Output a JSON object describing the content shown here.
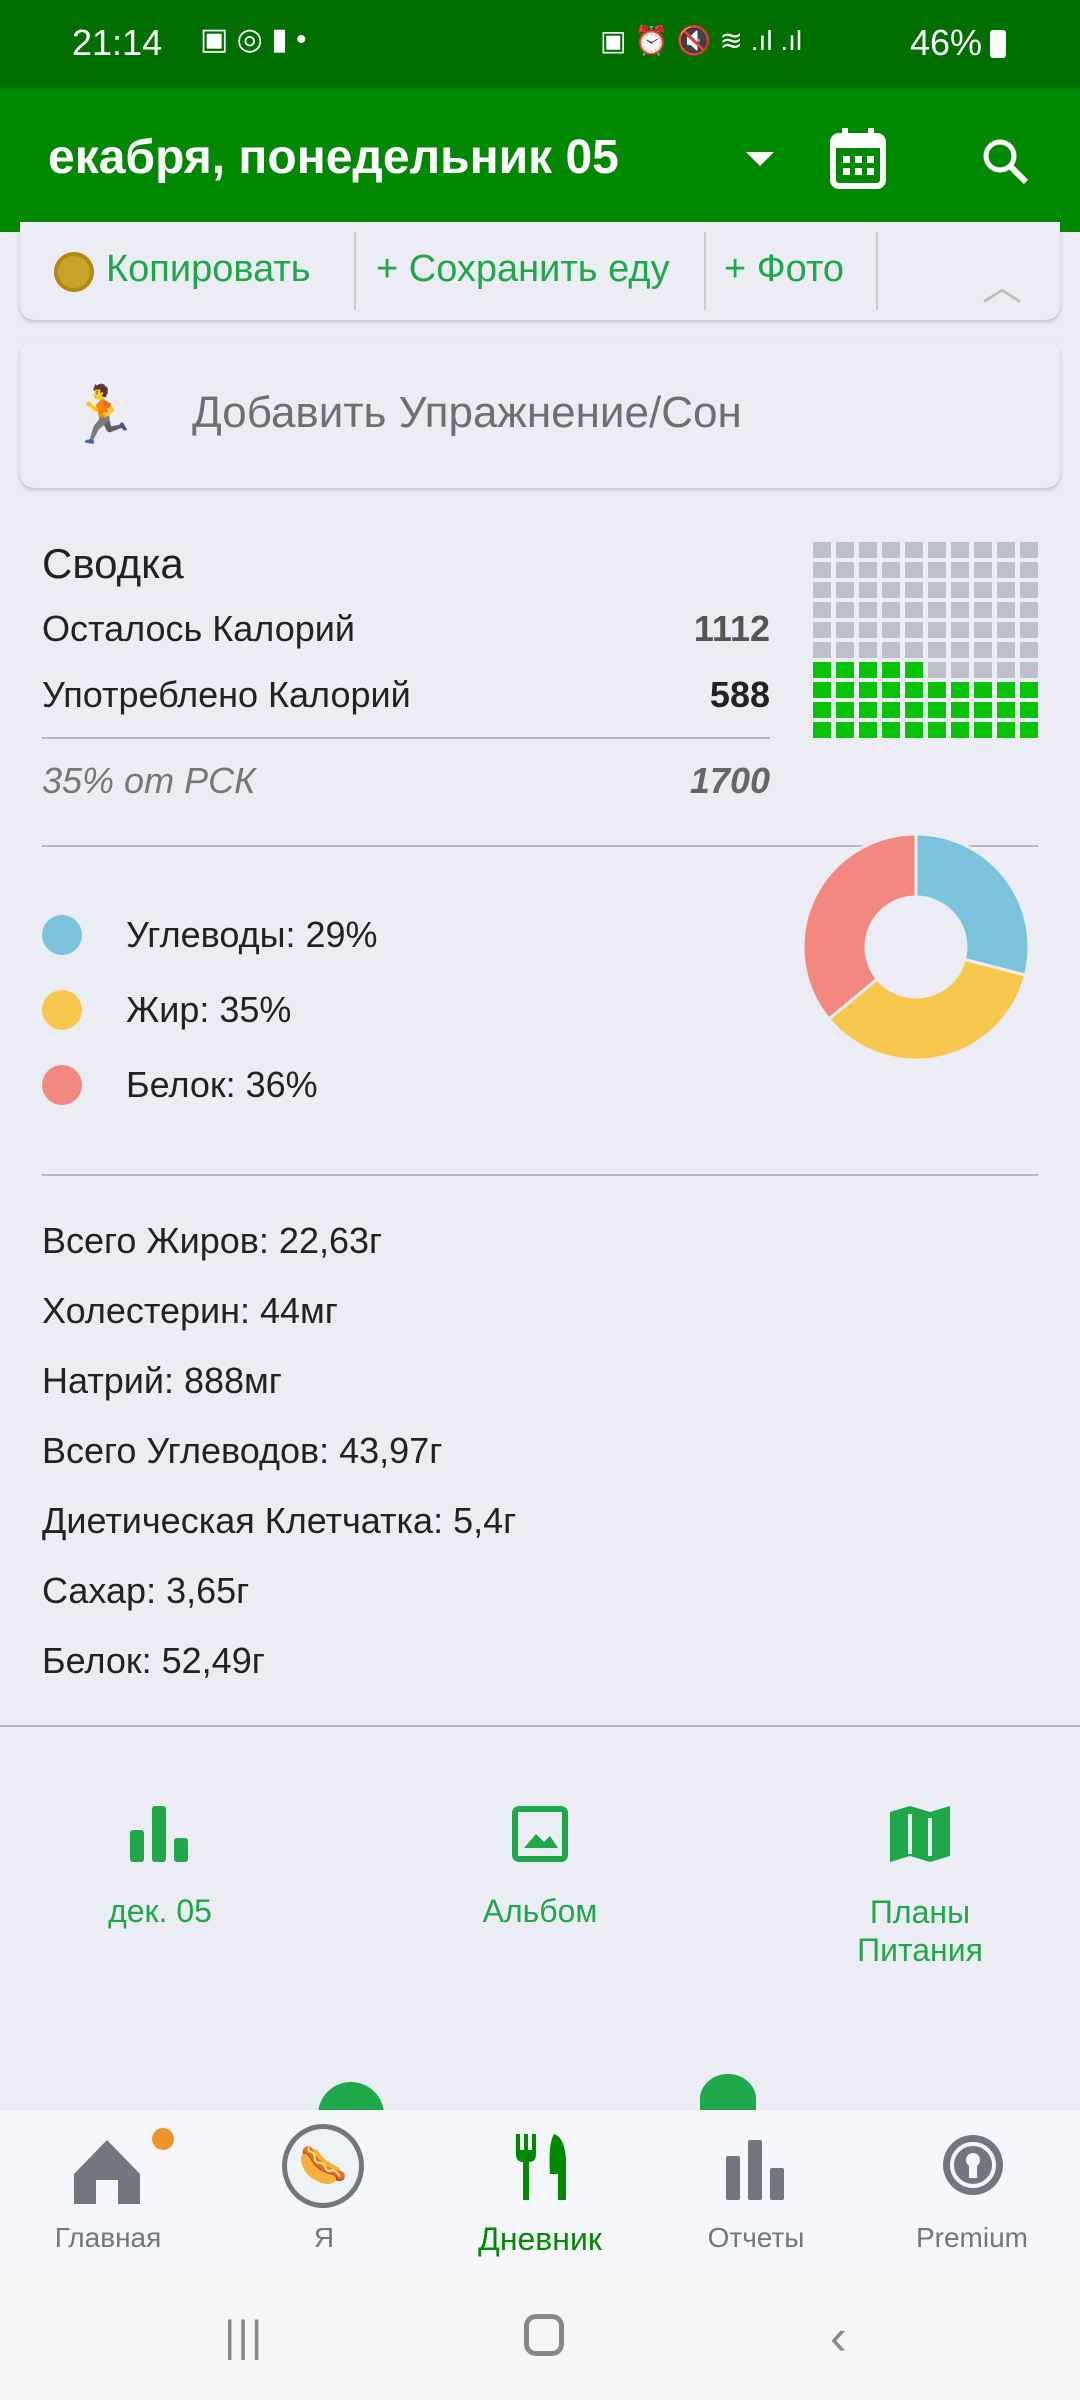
{
  "status": {
    "time": "21:14",
    "battery": "46%"
  },
  "appbar": {
    "title": "екабря, понедельник 05",
    "calendar_icon": "calendar-icon",
    "search_icon": "search-icon"
  },
  "toolbar": {
    "copy": "Копировать",
    "save_food": "+ Сохранить еду",
    "photo": "+ Фото"
  },
  "exercise": {
    "label": "Добавить Упражнение/Сон"
  },
  "summary": {
    "title": "Сводка",
    "remaining_label": "Осталось Калорий",
    "remaining": "1112",
    "consumed_label": "Употреблено Калорий",
    "consumed": "588",
    "percent_label": "35% от РСК",
    "goal": "1700",
    "waffle_fraction": 0.35
  },
  "chart_data": {
    "type": "pie",
    "donut": true,
    "categories": [
      "Углеводы: 29%",
      "Жир: 35%",
      "Белок: 36%"
    ],
    "values": [
      29,
      35,
      36
    ],
    "colors": [
      "#7AC3DA",
      "#F8C74E",
      "#F28880"
    ]
  },
  "nutrients": [
    "Всего Жиров: 22,63г",
    "Холестерин: 44мг",
    "Натрий: 888мг",
    "Всего Углеводов: 43,97г",
    "Диетическая Клетчатка: 5,4г",
    "Сахар: 3,65г",
    "Белок: 52,49г"
  ],
  "shortcuts": {
    "date": "дек. 05",
    "album": "Альбом",
    "plans1": "Планы",
    "plans2": "Питания"
  },
  "bottom_nav": [
    "Главная",
    "Я",
    "Дневник",
    "Отчеты",
    "Premium"
  ],
  "colors": {
    "accent": "#1FA84A",
    "appbar": "#008800",
    "active_tab": "#008A00"
  }
}
